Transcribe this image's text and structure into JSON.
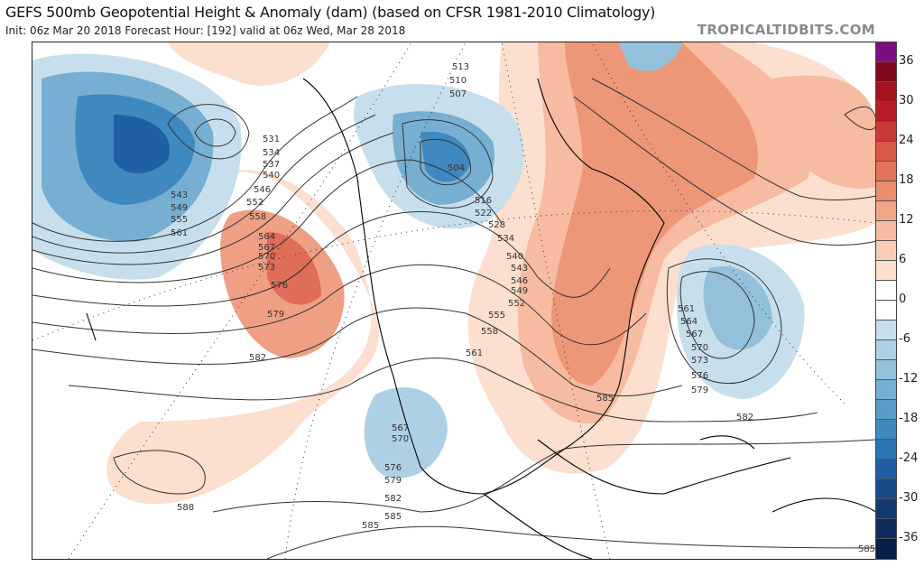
{
  "header": {
    "title": "GEFS 500mb Geopotential Height & Anomaly (dam) (based on CFSR 1981-2010 Climatology)",
    "subtitle": "Init: 06z Mar 20 2018   Forecast Hour: [192]   valid at 06z Wed, Mar 28 2018",
    "brand": "TROPICALTIDBITS.COM"
  },
  "colorbar": {
    "ticks": [
      "36",
      "30",
      "24",
      "18",
      "12",
      "6",
      "0",
      "-6",
      "-12",
      "-18",
      "-24",
      "-30",
      "-36"
    ],
    "colors": [
      "#7b0f7e",
      "#7f0a1e",
      "#a3141f",
      "#b91d26",
      "#c83a36",
      "#d95846",
      "#e2735a",
      "#eb8e6e",
      "#f2a585",
      "#f6bba1",
      "#f9ccb6",
      "#fcdfcf",
      "#ffffff",
      "#ffffff",
      "#c7dfec",
      "#aed0e5",
      "#93c1dc",
      "#77afd3",
      "#5a9cc9",
      "#3f89be",
      "#2a75b3",
      "#1f5fa3",
      "#184b8c",
      "#113a72",
      "#0c2c5c",
      "#081d48"
    ]
  },
  "contour_labels": [
    "513",
    "510",
    "507",
    "504",
    "516",
    "522",
    "528",
    "534",
    "540",
    "543",
    "546",
    "549",
    "552",
    "555",
    "558",
    "561",
    "531",
    "534",
    "537",
    "540",
    "543",
    "549",
    "555",
    "561",
    "546",
    "552",
    "558",
    "564",
    "567",
    "570",
    "573",
    "576",
    "579",
    "582",
    "588",
    "585",
    "561",
    "564",
    "567",
    "570",
    "573",
    "576",
    "579",
    "582",
    "585",
    "567",
    "570",
    "576",
    "579",
    "582",
    "585",
    "585"
  ]
}
